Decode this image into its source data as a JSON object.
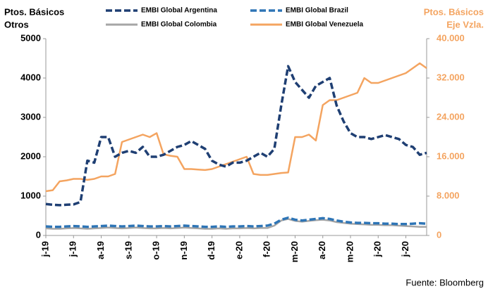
{
  "chart_data": {
    "type": "line",
    "y_label": [
      "Ptos. Básicos",
      "Otros"
    ],
    "y2_label": [
      "Ptos. Básicos",
      "Eje Vzla."
    ],
    "source": "Fuente: Bloomberg",
    "categories": [
      "j-19",
      null,
      null,
      null,
      "j-19",
      null,
      null,
      null,
      "a-19",
      null,
      null,
      null,
      "s-19",
      null,
      null,
      null,
      "o-19",
      null,
      null,
      null,
      "n-19",
      null,
      null,
      null,
      "d-19",
      null,
      null,
      null,
      "e-20",
      null,
      null,
      null,
      "f-20",
      null,
      null,
      null,
      "m-20",
      null,
      null,
      null,
      "a-20",
      null,
      null,
      null,
      "m-20",
      null,
      null,
      null,
      "j-20",
      null,
      null,
      null,
      "j-20",
      null,
      null,
      null
    ],
    "ylim": [
      0,
      5000
    ],
    "yticks": [
      0,
      1000,
      2000,
      3000,
      4000,
      5000
    ],
    "y2lim": [
      0,
      40000
    ],
    "y2ticks": [
      0,
      {
        "value": 8000,
        "label": "8.000"
      },
      {
        "value": 16000,
        "label": "16.000"
      },
      {
        "value": 24000,
        "label": "24.000"
      },
      {
        "value": 32000,
        "label": "32.000"
      },
      {
        "value": 40000,
        "label": "40.000"
      }
    ],
    "grid": false,
    "legend": "top",
    "series": [
      {
        "name": "EMBI Global Argentina",
        "color": "#1f3f73",
        "dash": true,
        "values": [
          800,
          780,
          770,
          780,
          790,
          850,
          1900,
          1850,
          2500,
          2500,
          2000,
          2100,
          2150,
          2100,
          2250,
          2000,
          2000,
          2050,
          2150,
          2250,
          2300,
          2400,
          2300,
          2200,
          1900,
          1800,
          1750,
          1850,
          1850,
          1900,
          2000,
          2100,
          2000,
          2200,
          3300,
          4300,
          3900,
          3700,
          3500,
          3800,
          3900,
          4000,
          3300,
          2900,
          2600,
          2500,
          2500,
          2450,
          2500,
          2550,
          2500,
          2450,
          2300,
          2250,
          2050,
          2100
        ]
      },
      {
        "name": "EMBI Global Brazil",
        "color": "#2e75b6",
        "dash": true,
        "values": [
          230,
          220,
          220,
          230,
          240,
          230,
          220,
          230,
          240,
          250,
          240,
          230,
          240,
          250,
          240,
          230,
          230,
          240,
          230,
          240,
          250,
          240,
          230,
          220,
          220,
          230,
          220,
          230,
          230,
          240,
          230,
          240,
          250,
          300,
          400,
          450,
          400,
          380,
          400,
          420,
          440,
          420,
          380,
          350,
          330,
          320,
          320,
          310,
          310,
          300,
          300,
          290,
          290,
          300,
          310,
          300
        ]
      },
      {
        "name": "EMBI Global Colombia",
        "color": "#a6a6a6",
        "dash": false,
        "values": [
          180,
          170,
          170,
          180,
          190,
          180,
          170,
          180,
          190,
          200,
          190,
          180,
          190,
          200,
          190,
          180,
          180,
          190,
          180,
          190,
          200,
          190,
          180,
          170,
          170,
          180,
          170,
          180,
          180,
          190,
          180,
          190,
          190,
          250,
          380,
          420,
          370,
          350,
          370,
          390,
          400,
          380,
          340,
          320,
          300,
          290,
          280,
          270,
          270,
          260,
          260,
          250,
          240,
          230,
          220,
          220
        ]
      },
      {
        "name": "EMBI Global Venezuela",
        "color": "#f4a460",
        "dash": false,
        "axis": "y2",
        "values": [
          9000,
          9200,
          11000,
          11200,
          11500,
          11500,
          11300,
          11500,
          12000,
          12000,
          12500,
          19000,
          19500,
          20000,
          20500,
          20000,
          20800,
          16500,
          16200,
          16000,
          13500,
          13500,
          13400,
          13300,
          13500,
          14000,
          14500,
          15000,
          15500,
          16000,
          12500,
          12300,
          12300,
          12500,
          12700,
          12800,
          20000,
          20000,
          20500,
          19300,
          26500,
          27500,
          27500,
          28000,
          28500,
          29000,
          32000,
          31000,
          31000,
          31500,
          32000,
          32500,
          33000,
          34000,
          35000,
          34000
        ]
      }
    ]
  }
}
